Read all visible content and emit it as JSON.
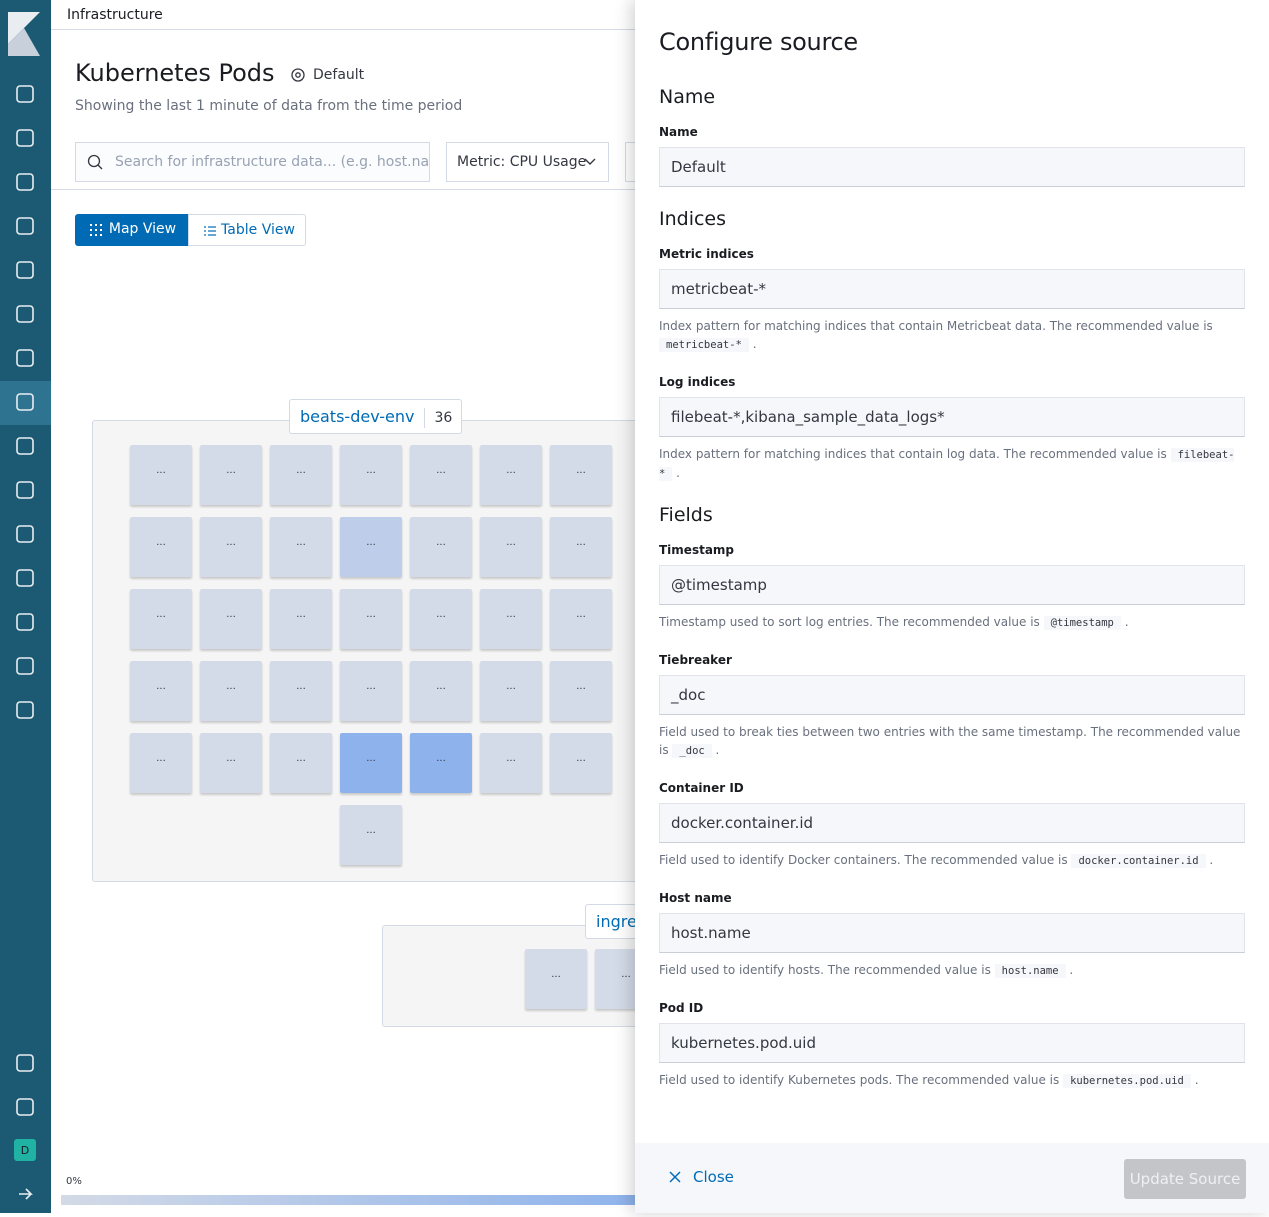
{
  "header": {
    "breadcrumb": "Infrastructure"
  },
  "page": {
    "title": "Kubernetes Pods",
    "source": "Default",
    "subtitle": "Showing the last 1 minute of data from the time period",
    "search_placeholder": "Search for infrastructure data... (e.g. host.nar",
    "metric": "Metric: CPU Usage",
    "views": [
      "Map View",
      "Table View"
    ]
  },
  "map": {
    "groups": [
      {
        "name": "beats-dev-env",
        "count": 36,
        "nodes": [
          {
            "label": "...",
            "color": "#d3dae8"
          },
          {
            "label": "...",
            "color": "#d3dae8"
          },
          {
            "label": "...",
            "color": "#d3dae8"
          },
          {
            "label": "...",
            "color": "#d3dae8"
          },
          {
            "label": "...",
            "color": "#d3dae8"
          },
          {
            "label": "...",
            "color": "#d3dae8"
          },
          {
            "label": "...",
            "color": "#d3dae8"
          },
          {
            "label": "...",
            "color": "#d3dae8"
          },
          {
            "label": "...",
            "color": "#d3dae8"
          },
          {
            "label": "...",
            "color": "#d3dae8"
          },
          {
            "label": "...",
            "color": "#bdcdea"
          },
          {
            "label": "...",
            "color": "#d3dae8"
          },
          {
            "label": "...",
            "color": "#d3dae8"
          },
          {
            "label": "...",
            "color": "#d3dae8"
          },
          {
            "label": "...",
            "color": "#d3dae8"
          },
          {
            "label": "...",
            "color": "#d3dae8"
          },
          {
            "label": "...",
            "color": "#d3dae8"
          },
          {
            "label": "...",
            "color": "#d3dae8"
          },
          {
            "label": "...",
            "color": "#d3dae8"
          },
          {
            "label": "...",
            "color": "#d3dae8"
          },
          {
            "label": "...",
            "color": "#d3dae8"
          },
          {
            "label": "...",
            "color": "#d3dae8"
          },
          {
            "label": "...",
            "color": "#d3dae8"
          },
          {
            "label": "...",
            "color": "#d3dae8"
          },
          {
            "label": "...",
            "color": "#d3dae8"
          },
          {
            "label": "...",
            "color": "#d3dae8"
          },
          {
            "label": "...",
            "color": "#d3dae8"
          },
          {
            "label": "...",
            "color": "#d3dae8"
          },
          {
            "label": "...",
            "color": "#d3dae8"
          },
          {
            "label": "...",
            "color": "#d3dae8"
          },
          {
            "label": "...",
            "color": "#d3dae8"
          },
          {
            "label": "...",
            "color": "#8eb3ec"
          },
          {
            "label": "...",
            "color": "#8eb3ec"
          },
          {
            "label": "...",
            "color": "#d3dae8"
          },
          {
            "label": "...",
            "color": "#d3dae8"
          },
          {
            "label": "...",
            "color": "#d3dae8"
          }
        ]
      },
      {
        "name": "ingre",
        "nodes": [
          {
            "label": "...",
            "color": "#d3dae8"
          },
          {
            "label": "...",
            "color": "#d3dae8"
          }
        ]
      }
    ],
    "legend_min": "0%"
  },
  "avatar": "D",
  "flyout": {
    "title": "Configure source",
    "sections": [
      {
        "title": "Name",
        "fields": [
          {
            "label": "Name",
            "value": "Default"
          }
        ]
      },
      {
        "title": "Indices",
        "fields": [
          {
            "label": "Metric indices",
            "value": "metricbeat-*",
            "help": "Index pattern for matching indices that contain Metricbeat data. The recommended value is",
            "code": "metricbeat-*",
            "end": "."
          },
          {
            "label": "Log indices",
            "value": "filebeat-*,kibana_sample_data_logs*",
            "help": "Index pattern for matching indices that contain log data. The recommended value is",
            "code": "filebeat-*",
            "end": "."
          }
        ]
      },
      {
        "title": "Fields",
        "fields": [
          {
            "label": "Timestamp",
            "value": "@timestamp",
            "help": "Timestamp used to sort log entries. The recommended value is",
            "code": "@timestamp",
            "end": "."
          },
          {
            "label": "Tiebreaker",
            "value": "_doc",
            "help": "Field used to break ties between two entries with the same timestamp. The recommended value is",
            "code": "_doc",
            "end": "."
          },
          {
            "label": "Container ID",
            "value": "docker.container.id",
            "help": "Field used to identify Docker containers. The recommended value is",
            "code": "docker.container.id",
            "end": "."
          },
          {
            "label": "Host name",
            "value": "host.name",
            "help": "Field used to identify hosts. The recommended value is",
            "code": "host.name",
            "end": "."
          },
          {
            "label": "Pod ID",
            "value": "kubernetes.pod.uid",
            "help": "Field used to identify Kubernetes pods. The recommended value is",
            "code": "kubernetes.pod.uid",
            "end": "."
          }
        ]
      }
    ],
    "close": "Close",
    "submit": "Update Source"
  }
}
